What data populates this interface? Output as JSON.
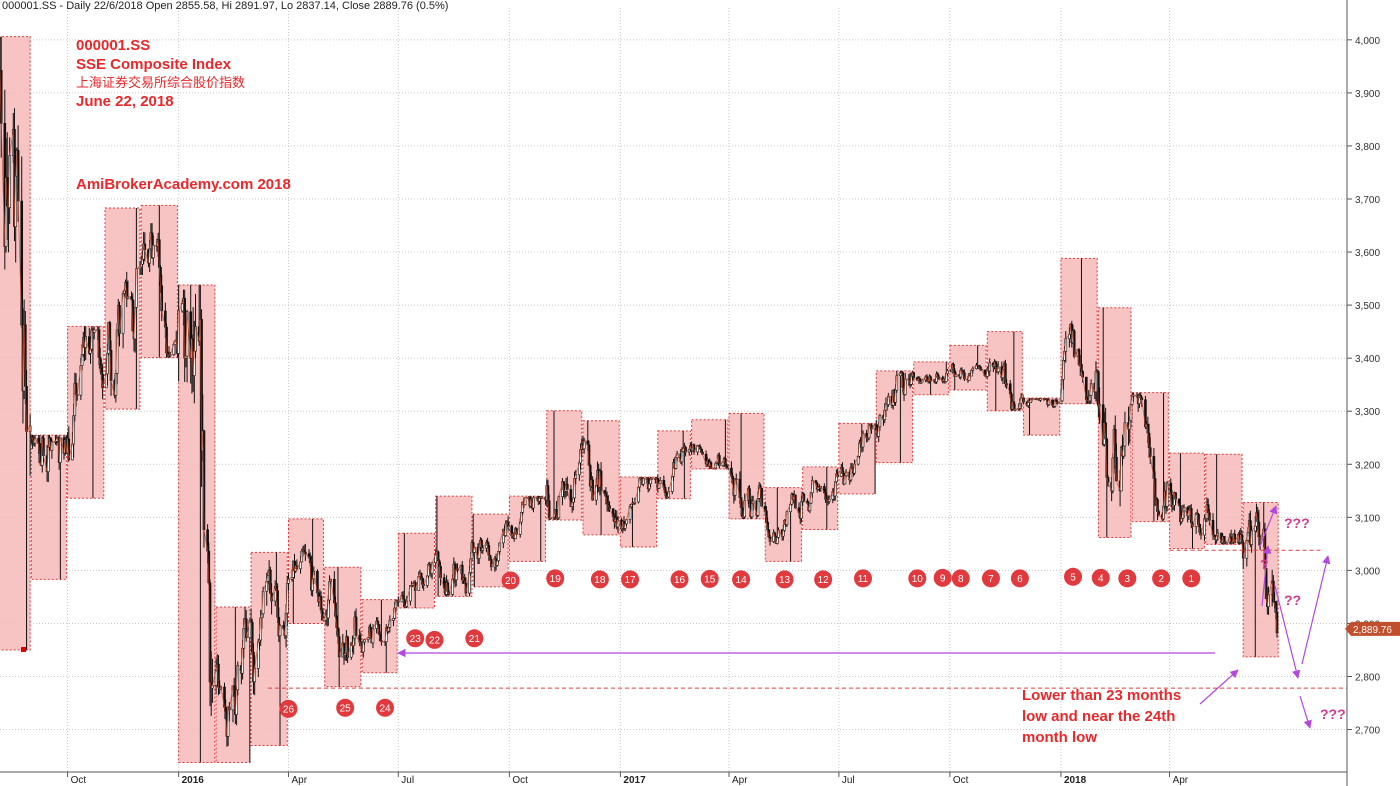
{
  "header": {
    "text": "000001.SS - Daily 22/6/2018 Open 2855.58, Hi 2891.97, Lo 2837.14, Close 2889.76 (0.5%)"
  },
  "annotations": {
    "symbol": "000001.SS",
    "name": "SSE Composite Index",
    "name_cn": "上海证券交易所综合股价指数",
    "date": "June 22, 2018",
    "site": "AmiBrokerAcademy.com  2018",
    "low_note": [
      "Lower than 23 months",
      "low and near the 24th",
      "month low"
    ],
    "question_marks": [
      "???",
      "?",
      "??",
      "???"
    ]
  },
  "colors": {
    "box_fill": "#f7b9b9",
    "box_border": "#e23b3b",
    "candle": "#111111",
    "close_line": "#c04a2a",
    "marker": "#e0393e",
    "arrow": "#b348e0",
    "price_tag": "#c0502d"
  },
  "chart_data": {
    "type": "candlestick",
    "symbol": "000001.SS",
    "y_range": [
      2620,
      4060
    ],
    "y_ticks": [
      2700,
      2800,
      2900,
      3000,
      3100,
      3200,
      3300,
      3400,
      3500,
      3600,
      3700,
      3800,
      3900,
      4000
    ],
    "y_tick_labels": [
      "2,700",
      "2,800",
      "2,900",
      "3,000",
      "3,100",
      "3,200",
      "3,300",
      "3,400",
      "3,500",
      "3,600",
      "3,700",
      "3,800",
      "3,900",
      "4,000"
    ],
    "x_range": [
      "2015-08-06",
      "2018-08-26"
    ],
    "x_ticks": [
      {
        "date": "2015-10-01",
        "label": "Oct",
        "bold": false
      },
      {
        "date": "2016-01-01",
        "label": "2016",
        "bold": true
      },
      {
        "date": "2016-04-01",
        "label": "Apr",
        "bold": false
      },
      {
        "date": "2016-07-01",
        "label": "Jul",
        "bold": false
      },
      {
        "date": "2016-10-01",
        "label": "Oct",
        "bold": false
      },
      {
        "date": "2017-01-01",
        "label": "2017",
        "bold": true
      },
      {
        "date": "2017-04-01",
        "label": "Apr",
        "bold": false
      },
      {
        "date": "2017-07-01",
        "label": "Jul",
        "bold": false
      },
      {
        "date": "2017-10-01",
        "label": "Oct",
        "bold": false
      },
      {
        "date": "2018-01-01",
        "label": "2018",
        "bold": true
      },
      {
        "date": "2018-04-01",
        "label": "Apr",
        "bold": false
      }
    ],
    "last_price": 2889.76,
    "last_price_label": "2,889.76",
    "support_line": 2778,
    "resistance_line": 3038,
    "monthly_ranges": [
      {
        "start": "2015-08-01",
        "end": "2015-08-31",
        "high": 4006,
        "low": 2850
      },
      {
        "start": "2015-09-01",
        "end": "2015-09-30",
        "high": 3255,
        "low": 2983
      },
      {
        "start": "2015-10-01",
        "end": "2015-10-31",
        "high": 3460,
        "low": 3136
      },
      {
        "start": "2015-11-01",
        "end": "2015-11-30",
        "high": 3683,
        "low": 3304
      },
      {
        "start": "2015-12-01",
        "end": "2015-12-31",
        "high": 3688,
        "low": 3401
      },
      {
        "start": "2016-01-01",
        "end": "2016-01-31",
        "high": 3538,
        "low": 2638
      },
      {
        "start": "2016-02-01",
        "end": "2016-02-29",
        "high": 2931,
        "low": 2638
      },
      {
        "start": "2016-03-01",
        "end": "2016-03-31",
        "high": 3034,
        "low": 2670
      },
      {
        "start": "2016-04-01",
        "end": "2016-04-30",
        "high": 3097,
        "low": 2900
      },
      {
        "start": "2016-05-01",
        "end": "2016-05-31",
        "high": 3006,
        "low": 2781
      },
      {
        "start": "2016-06-01",
        "end": "2016-06-30",
        "high": 2945,
        "low": 2807
      },
      {
        "start": "2016-07-01",
        "end": "2016-07-31",
        "high": 3070,
        "low": 2929
      },
      {
        "start": "2016-08-01",
        "end": "2016-08-31",
        "high": 3140,
        "low": 2951
      },
      {
        "start": "2016-09-01",
        "end": "2016-09-30",
        "high": 3106,
        "low": 2969
      },
      {
        "start": "2016-10-01",
        "end": "2016-10-31",
        "high": 3140,
        "low": 3017
      },
      {
        "start": "2016-11-01",
        "end": "2016-11-30",
        "high": 3301,
        "low": 3095
      },
      {
        "start": "2016-12-01",
        "end": "2016-12-31",
        "high": 3282,
        "low": 3067
      },
      {
        "start": "2017-01-01",
        "end": "2017-01-31",
        "high": 3176,
        "low": 3044
      },
      {
        "start": "2017-02-01",
        "end": "2017-02-28",
        "high": 3263,
        "low": 3135
      },
      {
        "start": "2017-03-01",
        "end": "2017-03-31",
        "high": 3284,
        "low": 3191
      },
      {
        "start": "2017-04-01",
        "end": "2017-04-30",
        "high": 3296,
        "low": 3097
      },
      {
        "start": "2017-05-01",
        "end": "2017-05-31",
        "high": 3156,
        "low": 3017
      },
      {
        "start": "2017-06-01",
        "end": "2017-06-30",
        "high": 3195,
        "low": 3077
      },
      {
        "start": "2017-07-01",
        "end": "2017-07-31",
        "high": 3277,
        "low": 3144
      },
      {
        "start": "2017-08-01",
        "end": "2017-08-31",
        "high": 3376,
        "low": 3203
      },
      {
        "start": "2017-09-01",
        "end": "2017-09-30",
        "high": 3393,
        "low": 3331
      },
      {
        "start": "2017-10-01",
        "end": "2017-10-31",
        "high": 3424,
        "low": 3340
      },
      {
        "start": "2017-11-01",
        "end": "2017-11-30",
        "high": 3450,
        "low": 3301
      },
      {
        "start": "2017-12-01",
        "end": "2017-12-31",
        "high": 3325,
        "low": 3255
      },
      {
        "start": "2018-01-01",
        "end": "2018-01-31",
        "high": 3588,
        "low": 3314
      },
      {
        "start": "2018-02-01",
        "end": "2018-02-28",
        "high": 3495,
        "low": 3062
      },
      {
        "start": "2018-03-01",
        "end": "2018-03-31",
        "high": 3335,
        "low": 3092
      },
      {
        "start": "2018-04-01",
        "end": "2018-04-30",
        "high": 3221,
        "low": 3041
      },
      {
        "start": "2018-05-01",
        "end": "2018-05-31",
        "high": 3219,
        "low": 3049
      },
      {
        "start": "2018-06-01",
        "end": "2018-06-30",
        "high": 3128,
        "low": 2837
      }
    ],
    "count_markers": [
      {
        "label": "1",
        "date": "2018-04-19",
        "y": 2985
      },
      {
        "label": "2",
        "date": "2018-03-25",
        "y": 2985
      },
      {
        "label": "3",
        "date": "2018-02-25",
        "y": 2985
      },
      {
        "label": "4",
        "date": "2018-02-03",
        "y": 2986
      },
      {
        "label": "5",
        "date": "2018-01-11",
        "y": 2988
      },
      {
        "label": "6",
        "date": "2017-11-28",
        "y": 2985
      },
      {
        "label": "7",
        "date": "2017-11-04",
        "y": 2985
      },
      {
        "label": "8",
        "date": "2017-10-10",
        "y": 2985
      },
      {
        "label": "9",
        "date": "2017-09-25",
        "y": 2986
      },
      {
        "label": "10",
        "date": "2017-09-04",
        "y": 2985
      },
      {
        "label": "11",
        "date": "2017-07-21",
        "y": 2985
      },
      {
        "label": "12",
        "date": "2017-06-18",
        "y": 2983
      },
      {
        "label": "13",
        "date": "2017-05-17",
        "y": 2983
      },
      {
        "label": "14",
        "date": "2017-04-11",
        "y": 2983
      },
      {
        "label": "15",
        "date": "2017-03-16",
        "y": 2984
      },
      {
        "label": "16",
        "date": "2017-02-19",
        "y": 2983
      },
      {
        "label": "17",
        "date": "2017-01-09",
        "y": 2983
      },
      {
        "label": "18",
        "date": "2016-12-15",
        "y": 2983
      },
      {
        "label": "19",
        "date": "2016-11-08",
        "y": 2985
      },
      {
        "label": "20",
        "date": "2016-10-02",
        "y": 2981
      },
      {
        "label": "21",
        "date": "2016-09-02",
        "y": 2872
      },
      {
        "label": "22",
        "date": "2016-07-31",
        "y": 2869
      },
      {
        "label": "23",
        "date": "2016-07-15",
        "y": 2872
      },
      {
        "label": "24",
        "date": "2016-06-20",
        "y": 2741
      },
      {
        "label": "25",
        "date": "2016-05-18",
        "y": 2741
      },
      {
        "label": "26",
        "date": "2016-04-01",
        "y": 2739
      }
    ]
  }
}
